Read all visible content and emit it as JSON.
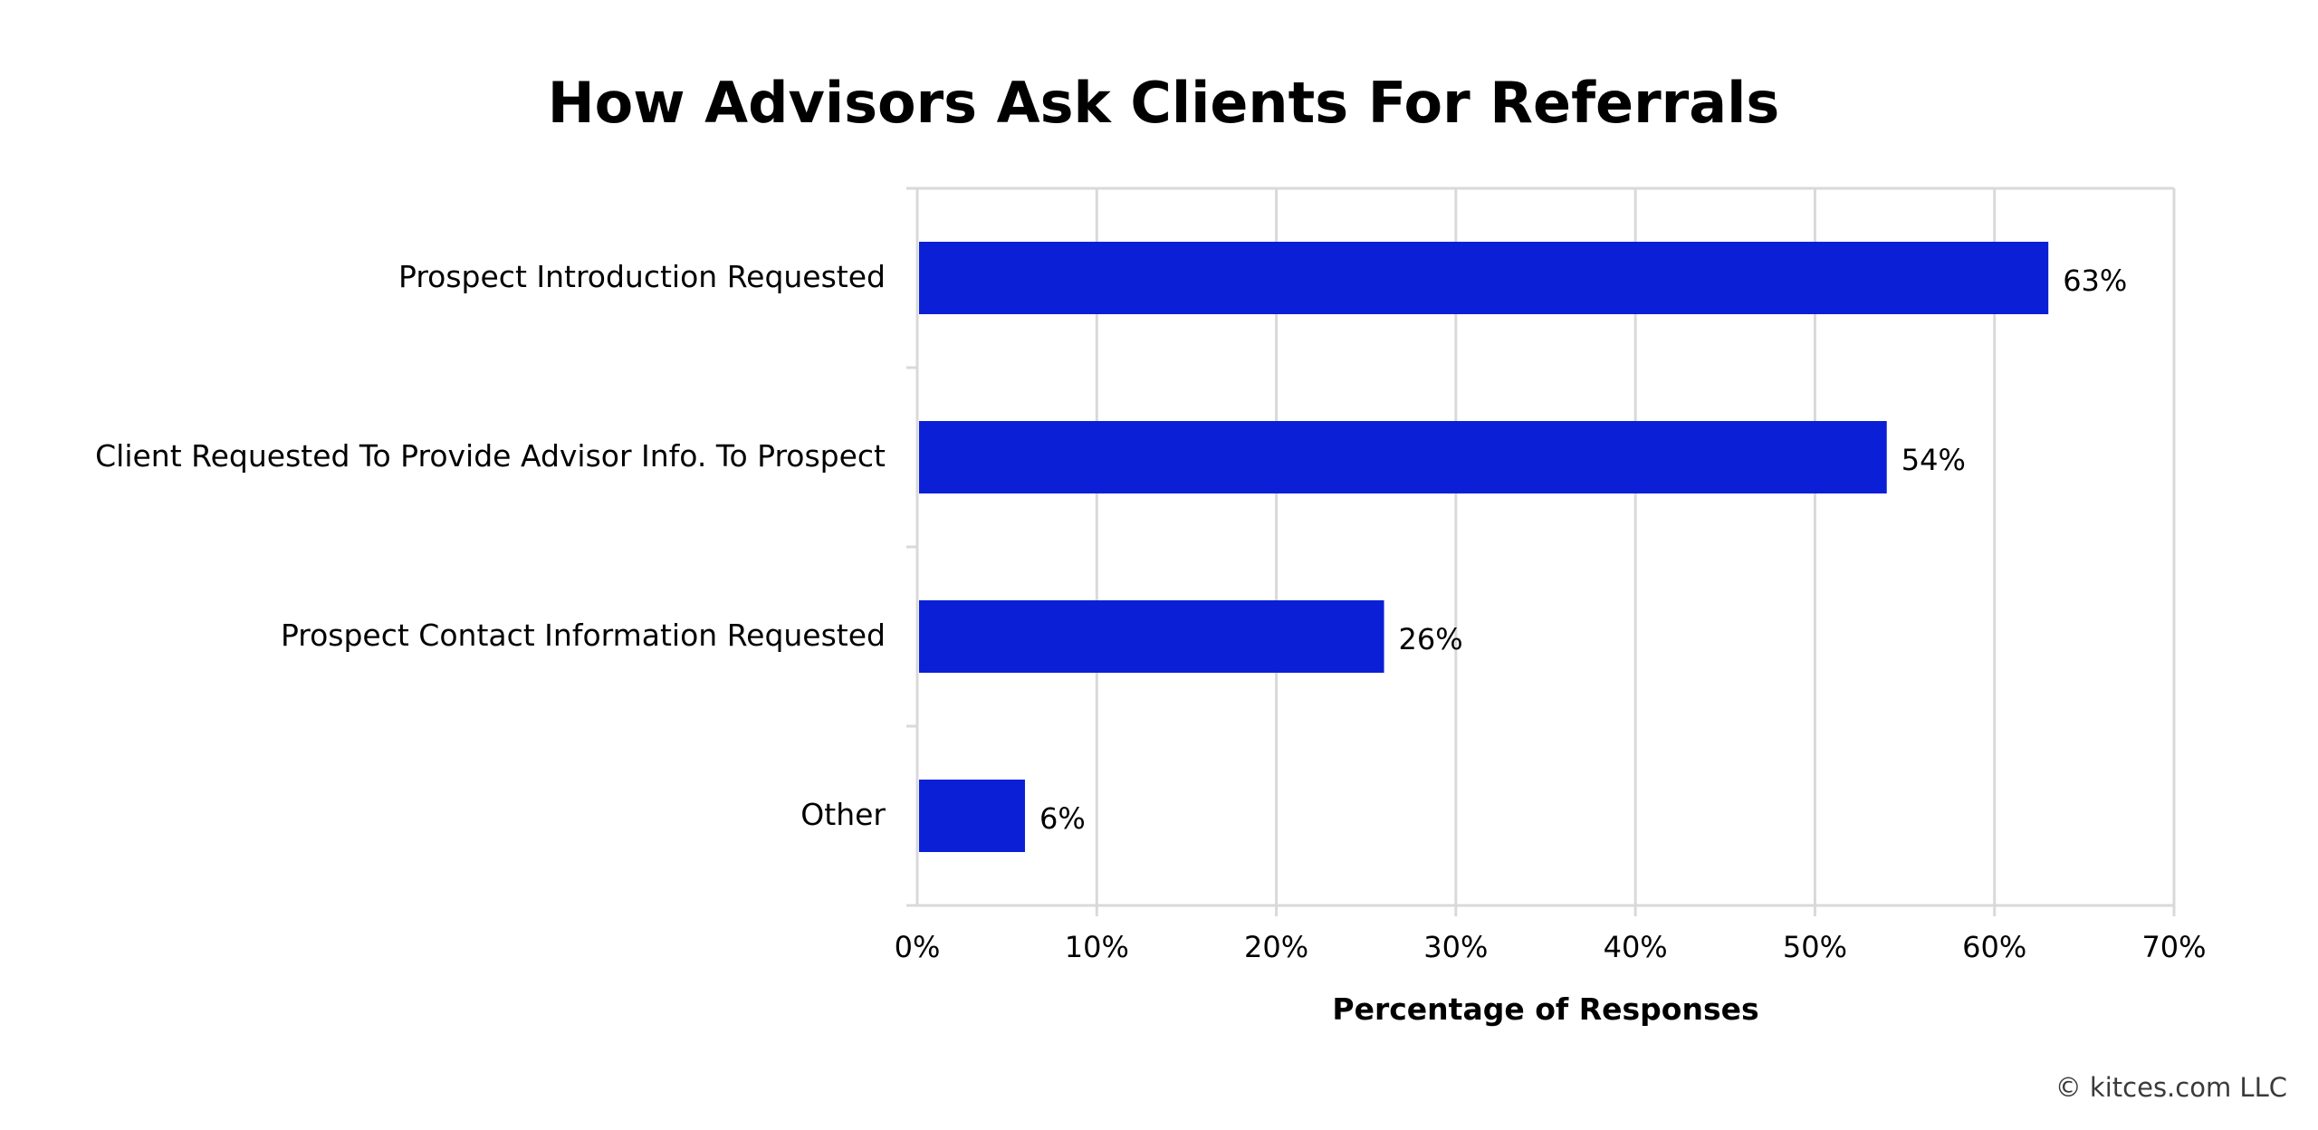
{
  "credit": "© kitces.com LLC",
  "colors": {
    "bar": "#0a1fd6",
    "grid": "#d9d9d9",
    "text": "#000000"
  },
  "chart_data": {
    "type": "bar",
    "orientation": "horizontal",
    "title": "How Advisors Ask Clients For Referrals",
    "xlabel": "Percentage of Responses",
    "ylabel": "",
    "categories": [
      "Prospect Introduction Requested",
      "Client Requested To Provide Advisor Info. To Prospect",
      "Prospect Contact Information Requested",
      "Other"
    ],
    "values": [
      63,
      54,
      26,
      6
    ],
    "value_labels": [
      "63%",
      "54%",
      "26%",
      "6%"
    ],
    "xlim": [
      0,
      70
    ],
    "x_ticks": [
      0,
      10,
      20,
      30,
      40,
      50,
      60,
      70
    ],
    "x_tick_labels": [
      "0%",
      "10%",
      "20%",
      "30%",
      "40%",
      "50%",
      "60%",
      "70%"
    ],
    "grid": true,
    "legend": "none"
  }
}
